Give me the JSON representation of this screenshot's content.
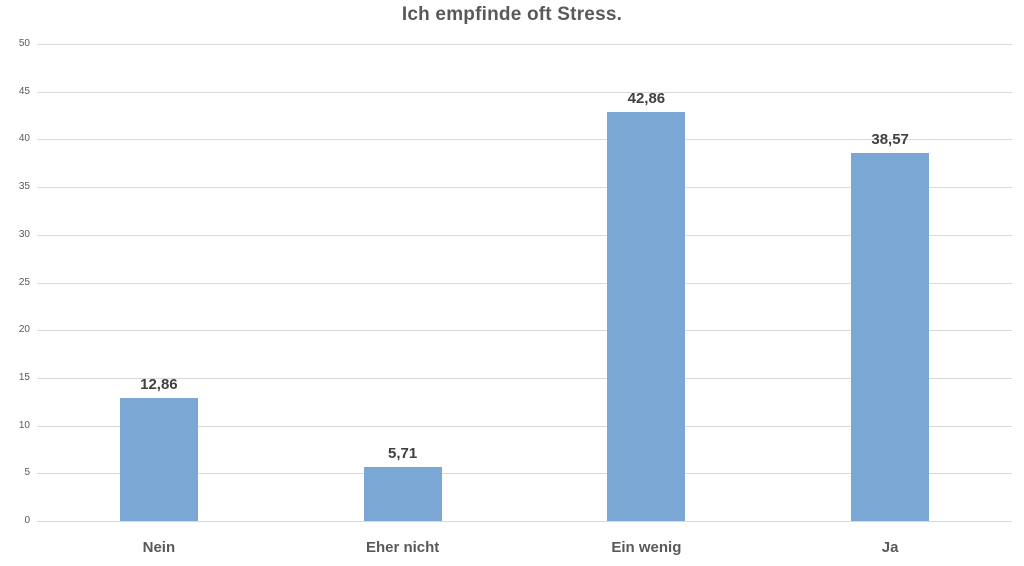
{
  "chart_data": {
    "type": "bar",
    "title": "Ich empfinde oft Stress.",
    "categories": [
      "Nein",
      "Eher nicht",
      "Ein wenig",
      "Ja"
    ],
    "values": [
      12.86,
      5.71,
      42.86,
      38.57
    ],
    "value_labels": [
      "12,86",
      "5,71",
      "42,86",
      "38,57"
    ],
    "xlabel": "",
    "ylabel": "",
    "ylim": [
      0,
      50
    ],
    "ytick_step": 5,
    "ytick_labels": [
      "0",
      "5",
      "10",
      "15",
      "20",
      "25",
      "30",
      "35",
      "40",
      "45",
      "50"
    ],
    "grid": "horizontal",
    "legend": "none",
    "colors": {
      "bar_fill": "#7aa7d4",
      "gridline": "#d9d9d9",
      "title_text": "#595959",
      "tick_text": "#595959",
      "value_label_text": "#404040",
      "category_label_text": "#595959",
      "background": "#ffffff"
    }
  }
}
